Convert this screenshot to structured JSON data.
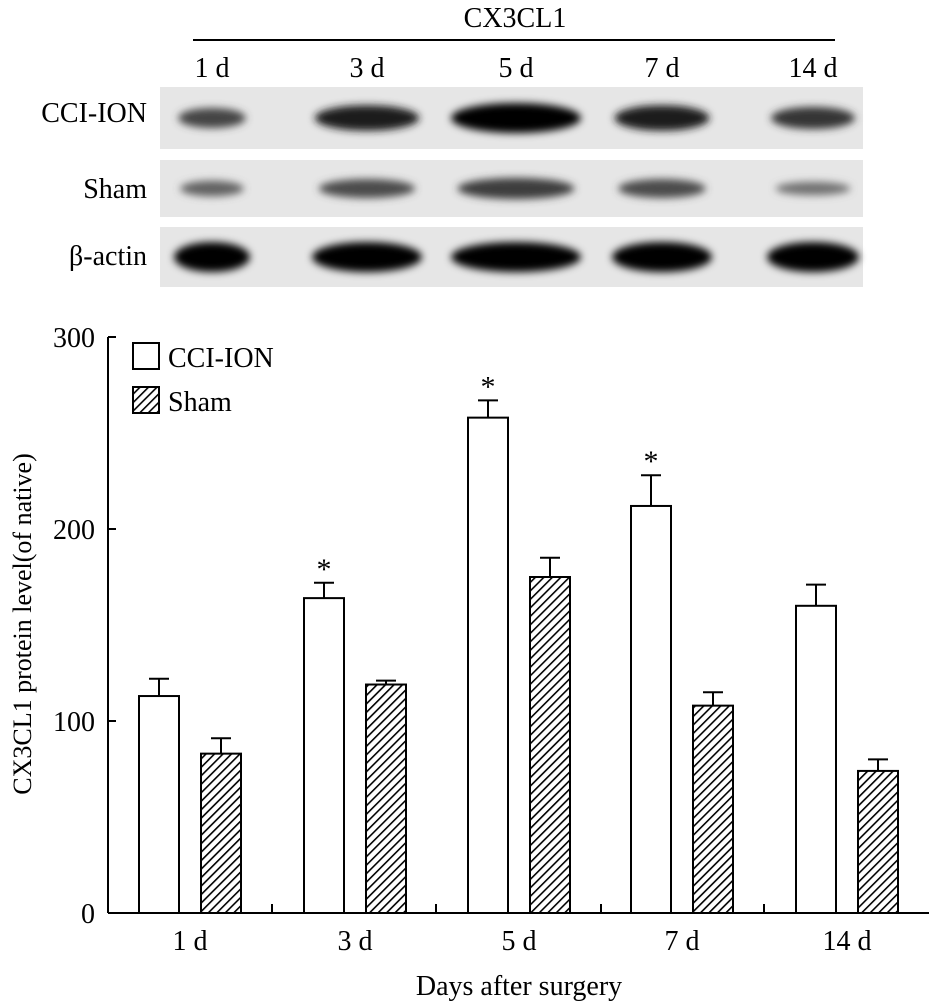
{
  "blot": {
    "header": "CX3CL1",
    "lanes": [
      "1 d",
      "3 d",
      "5 d",
      "7 d",
      "14 d"
    ],
    "rows": [
      {
        "label": "CCI-ION",
        "intensity": [
          0.55,
          0.8,
          1.0,
          0.8,
          0.65
        ]
      },
      {
        "label": "Sham",
        "intensity": [
          0.35,
          0.5,
          0.6,
          0.5,
          0.25
        ]
      },
      {
        "label": "β-actin",
        "intensity": [
          1.0,
          1.0,
          1.0,
          1.0,
          1.0
        ]
      }
    ]
  },
  "chart_data": {
    "type": "bar",
    "categories": [
      "1 d",
      "3 d",
      "5 d",
      "7 d",
      "14 d"
    ],
    "series": [
      {
        "name": "CCI-ION",
        "values": [
          113,
          164,
          258,
          212,
          160
        ],
        "errors": [
          9,
          8,
          9,
          16,
          11
        ],
        "significant": [
          "",
          "*",
          "*",
          "*",
          ""
        ]
      },
      {
        "name": "Sham",
        "values": [
          83,
          119,
          175,
          108,
          74
        ],
        "errors": [
          8,
          2,
          10,
          7,
          6
        ],
        "significant": [
          "",
          "",
          "",
          "",
          ""
        ]
      }
    ],
    "xlabel": "Days after surgery",
    "ylabel": "CX3CL1 protein level(of native)",
    "ylim": [
      0,
      300
    ],
    "yticks": [
      0,
      100,
      200,
      300
    ],
    "legend": "top-left"
  },
  "colors": {
    "ccion_fill": "#ffffff",
    "sham_hatch": "#000000",
    "axis": "#000000"
  }
}
